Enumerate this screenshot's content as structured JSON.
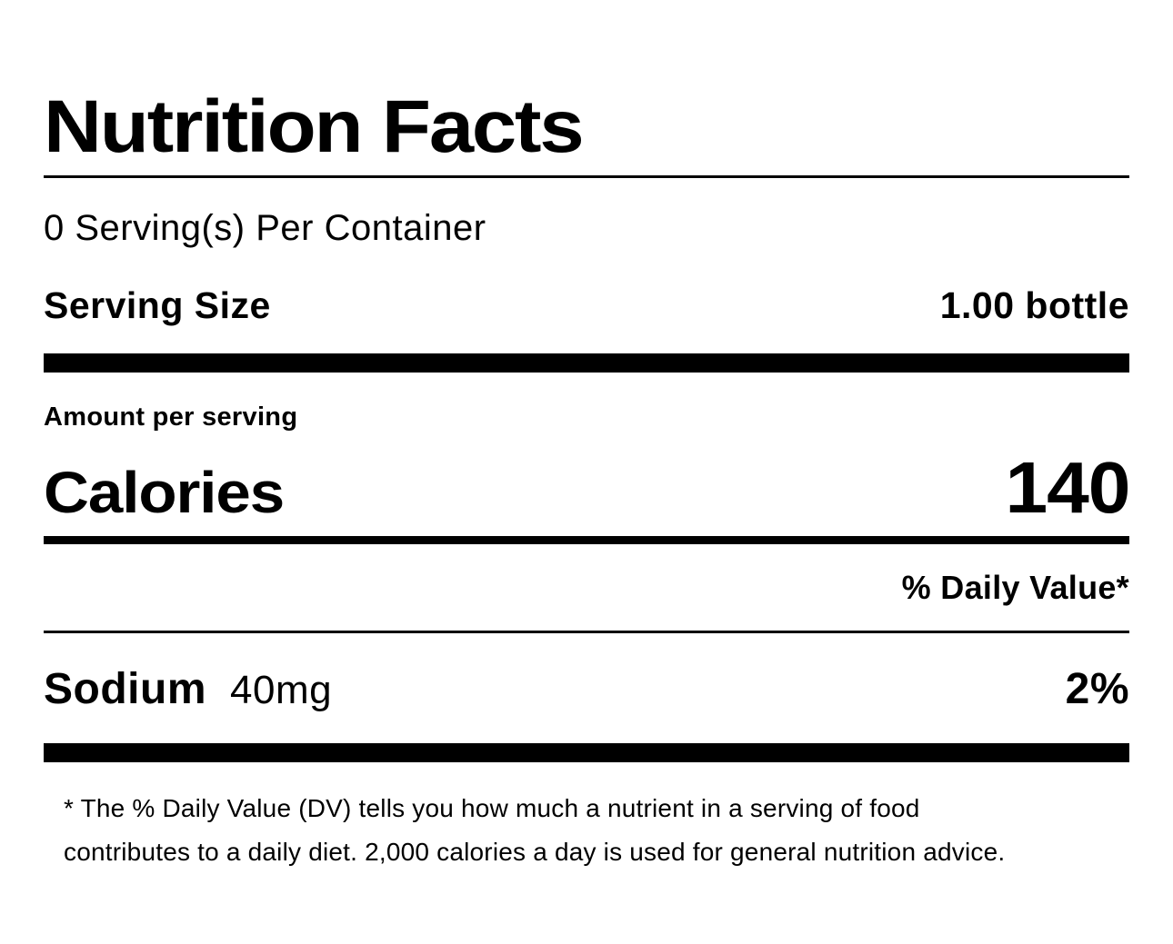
{
  "label": {
    "title": "Nutrition Facts",
    "servings_per_container": "0 Serving(s) Per Container",
    "serving_size": {
      "label": "Serving Size",
      "value": "1.00 bottle"
    },
    "amount_per_serving": "Amount per serving",
    "calories": {
      "label": "Calories",
      "value": "140"
    },
    "daily_value_header": "% Daily Value*",
    "nutrients": [
      {
        "name": "Sodium",
        "amount": "40mg",
        "daily_value": "2%"
      }
    ],
    "footnote": {
      "line1": "* The % Daily Value (DV) tells you how much a nutrient in a serving of food",
      "line2": "contributes to a daily diet. 2,000 calories a day is used for general nutrition advice."
    }
  }
}
